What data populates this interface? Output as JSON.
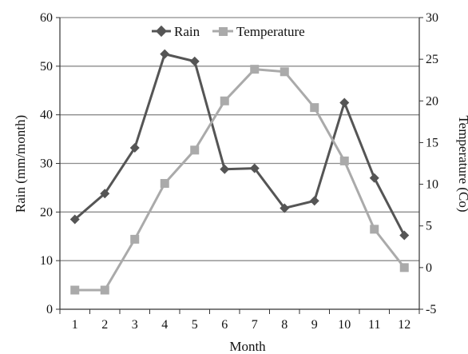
{
  "chart_data": {
    "type": "line",
    "title": "",
    "xlabel": "Month",
    "ylabel_left": "Rain (mm/month)",
    "ylabel_right": "Temperature (Co)",
    "x": [
      1,
      2,
      3,
      4,
      5,
      6,
      7,
      8,
      9,
      10,
      11,
      12
    ],
    "x_tick_labels": [
      "1",
      "2",
      "3",
      "4",
      "5",
      "6",
      "7",
      "8",
      "9",
      "10",
      "11",
      "12"
    ],
    "ylim_left": [
      0,
      60
    ],
    "y_ticks_left": [
      "0",
      "10",
      "20",
      "30",
      "40",
      "50",
      "60"
    ],
    "ylim_right": [
      -5,
      30
    ],
    "y_ticks_right": [
      "-5",
      "0",
      "5",
      "10",
      "15",
      "20",
      "25",
      "30"
    ],
    "grid": "horizontal",
    "legend_position": "top-center",
    "series": [
      {
        "name": "Rain",
        "axis": "left",
        "marker": "diamond",
        "color": "#555555",
        "values": [
          18.5,
          23.8,
          33.2,
          52.5,
          51.0,
          28.8,
          29.0,
          20.8,
          22.3,
          42.5,
          27.0,
          15.2
        ]
      },
      {
        "name": "Temperature",
        "axis": "right",
        "marker": "square",
        "color": "#aaaaaa",
        "values": [
          -2.7,
          -2.7,
          3.4,
          10.1,
          14.1,
          20.0,
          23.8,
          23.5,
          19.2,
          12.8,
          4.6,
          0.0
        ]
      }
    ]
  }
}
